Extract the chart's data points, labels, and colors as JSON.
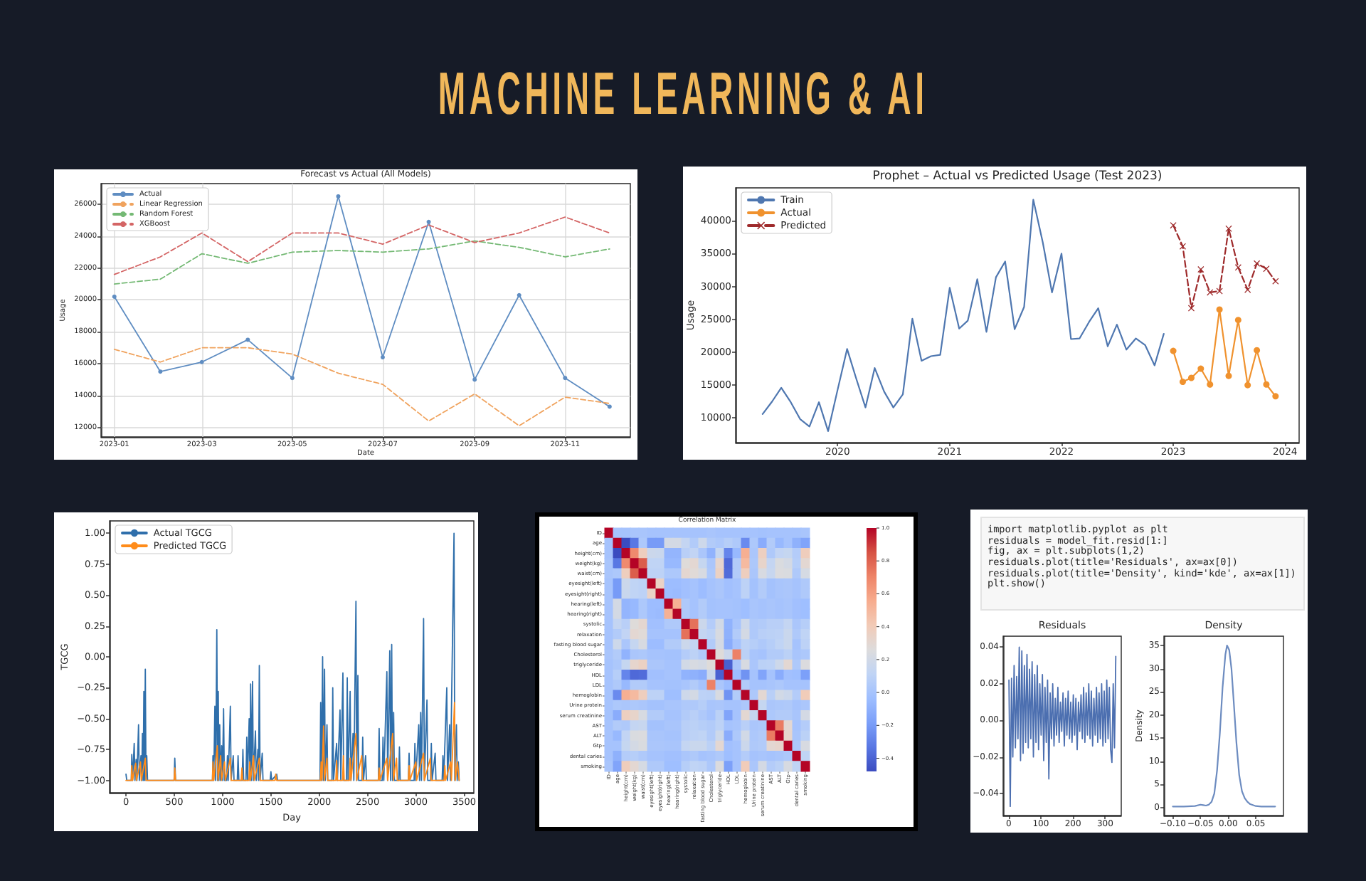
{
  "chart_data": [
    {
      "type": "other",
      "title": "MACHINE LEARNING & AI"
    },
    {
      "type": "line",
      "title": "Forecast vs Actual (All Models)",
      "xlabel": "Date",
      "ylabel": "Usage",
      "x": [
        "2023-01",
        "2023-02",
        "2023-03",
        "2023-04",
        "2023-05",
        "2023-06",
        "2023-07",
        "2023-08",
        "2023-09",
        "2023-10",
        "2023-11",
        "2023-12"
      ],
      "series": [
        {
          "name": "Actual",
          "color": "#5f8dc2",
          "marker": "circle",
          "values": [
            20200,
            15500,
            16100,
            17500,
            15100,
            26500,
            16400,
            24900,
            15000,
            20300,
            15100,
            13300
          ]
        },
        {
          "name": "Linear Regression",
          "color": "#f0a35e",
          "line_style": "dashed",
          "values": [
            16900,
            16100,
            17000,
            17000,
            16600,
            15400,
            14700,
            12400,
            14100,
            12100,
            13900,
            13500
          ]
        },
        {
          "name": "Random Forest",
          "color": "#74b974",
          "line_style": "dashed",
          "values": [
            21000,
            21300,
            22900,
            22300,
            23000,
            23100,
            23000,
            23200,
            23700,
            23300,
            22700,
            23200
          ]
        },
        {
          "name": "XGBoost",
          "color": "#d46565",
          "line_style": "dashed",
          "values": [
            21600,
            22700,
            24200,
            22400,
            24200,
            24200,
            23500,
            24700,
            23600,
            24200,
            25200,
            24200
          ]
        }
      ],
      "xlim": [
        "2022-12-23",
        "2023-12-15"
      ],
      "xticks": [
        "2023-01",
        "2023-03",
        "2023-05",
        "2023-07",
        "2023-09",
        "2023-11"
      ],
      "ylim": [
        11400,
        27300
      ],
      "yticks": [
        12000,
        14000,
        16000,
        18000,
        20000,
        22000,
        24000,
        26000
      ],
      "grid": true,
      "legend": "top left"
    },
    {
      "type": "line",
      "title": "Prophet – Actual vs Predicted Usage (Test 2023)",
      "ylabel": "Usage",
      "series": [
        {
          "name": "Train",
          "color": "#4f77b0",
          "x": [
            "2019-05",
            "2019-06",
            "2019-07",
            "2019-08",
            "2019-09",
            "2019-10",
            "2019-11",
            "2019-12",
            "2020-01",
            "2020-02",
            "2020-03",
            "2020-04",
            "2020-05",
            "2020-06",
            "2020-07",
            "2020-08",
            "2020-09",
            "2020-10",
            "2020-11",
            "2020-12",
            "2021-01",
            "2021-02",
            "2021-03",
            "2021-04",
            "2021-05",
            "2021-06",
            "2021-07",
            "2021-08",
            "2021-09",
            "2021-10",
            "2021-11",
            "2021-12",
            "2022-01",
            "2022-02",
            "2022-03",
            "2022-04",
            "2022-05",
            "2022-06",
            "2022-07",
            "2022-08",
            "2022-09",
            "2022-10",
            "2022-11",
            "2022-12"
          ],
          "values": [
            10600,
            12500,
            14600,
            12400,
            9800,
            8700,
            12400,
            8000,
            14300,
            20500,
            16100,
            11600,
            17600,
            14000,
            11600,
            13600,
            25100,
            18700,
            19400,
            19600,
            29800,
            23600,
            24800,
            31100,
            23100,
            31400,
            33800,
            23500,
            26900,
            43200,
            36700,
            29100,
            35000,
            22000,
            22100,
            24600,
            26700,
            20900,
            24200,
            20400,
            22100,
            21100,
            18000,
            22800
          ]
        },
        {
          "name": "Actual",
          "color": "#f0922e",
          "marker": "circle",
          "x": [
            "2023-01",
            "2023-02",
            "2023-03",
            "2023-04",
            "2023-05",
            "2023-06",
            "2023-07",
            "2023-08",
            "2023-09",
            "2023-10",
            "2023-11",
            "2023-12"
          ],
          "values": [
            20200,
            15500,
            16100,
            17500,
            15100,
            26500,
            16400,
            24900,
            15000,
            20300,
            15100,
            13300
          ]
        },
        {
          "name": "Predicted",
          "color": "#9e2a2b",
          "marker": "cross",
          "line_style": "dashed",
          "x": [
            "2023-01",
            "2023-02",
            "2023-03",
            "2023-04",
            "2023-05",
            "2023-06",
            "2023-07",
            "2023-08",
            "2023-09",
            "2023-10",
            "2023-11",
            "2023-12"
          ],
          "values": [
            39300,
            36100,
            26700,
            32600,
            29100,
            29300,
            38800,
            32900,
            29500,
            33500,
            32700,
            30800
          ]
        }
      ],
      "xlim": [
        "2019-02-02",
        "2024-02-16"
      ],
      "xticks": [
        "2020",
        "2021",
        "2022",
        "2023",
        "2024"
      ],
      "ylim": [
        6250,
        45000
      ],
      "yticks": [
        10000,
        15000,
        20000,
        25000,
        30000,
        35000,
        40000
      ],
      "legend": "top left"
    },
    {
      "type": "line",
      "xlabel": "Day",
      "ylabel": "TGCG",
      "series": [
        {
          "name": "Actual TGCG",
          "color": "#2f6fab",
          "x": [
            0,
            8,
            55,
            60,
            68,
            85,
            93,
            105,
            113,
            130,
            138,
            155,
            163,
            170,
            178,
            185,
            192,
            200,
            207,
            215,
            223,
            498,
            505,
            513,
            895,
            900,
            908,
            920,
            928,
            940,
            948,
            955,
            962,
            970,
            978,
            990,
            998,
            1010,
            1018,
            1042,
            1050,
            1058,
            1080,
            1088,
            1110,
            1118,
            1152,
            1160,
            1168,
            1202,
            1210,
            1218,
            1242,
            1250,
            1258,
            1275,
            1283,
            1290,
            1298,
            1310,
            1318,
            1340,
            1348,
            1365,
            1372,
            1380,
            1388,
            1410,
            1418,
            1492,
            1500,
            1508,
            1560,
            1568,
            2008,
            2015,
            2022,
            2035,
            2042,
            2055,
            2062,
            2080,
            2088,
            2132,
            2140,
            2148,
            2180,
            2188,
            2215,
            2223,
            2245,
            2253,
            2282,
            2290,
            2298,
            2320,
            2328,
            2350,
            2358,
            2380,
            2388,
            2400,
            2408,
            2442,
            2450,
            2458,
            2480,
            2488,
            2612,
            2620,
            2628,
            2652,
            2660,
            2668,
            2700,
            2708,
            2730,
            2738,
            2750,
            2758,
            2770,
            2778,
            2822,
            2830,
            2838,
            2922,
            2930,
            2938,
            2982,
            2990,
            2998,
            3030,
            3038,
            3050,
            3058,
            3080,
            3088,
            3115,
            3123,
            3152,
            3160,
            3168,
            3200,
            3208,
            3272,
            3280,
            3288,
            3320,
            3328,
            3350,
            3358,
            3395,
            3403,
            3420,
            3428,
            3440,
            3448
          ],
          "values": [
            -0.95,
            -1,
            -1,
            -0.79,
            -1,
            -0.7,
            -1,
            -0.83,
            -1,
            -0.55,
            -1,
            -0.8,
            -1,
            -0.62,
            -1,
            -0.28,
            -1,
            -0.1,
            -1,
            -0.8,
            -1,
            -1,
            -0.82,
            -1,
            -1,
            -0.8,
            -1,
            -0.4,
            -1,
            0.22,
            -1,
            -0.28,
            -1,
            -0.55,
            -1,
            -0.72,
            -1,
            -0.42,
            -1,
            -1,
            -0.8,
            -1,
            -0.4,
            -1,
            -0.8,
            -1,
            -1,
            -0.8,
            -1,
            -1,
            -0.75,
            -1,
            -1,
            -0.65,
            -1,
            -0.5,
            -1,
            -0.22,
            -1,
            -0.2,
            -1,
            -0.6,
            -1,
            -0.75,
            -1,
            -0.07,
            -1,
            -0.78,
            -1,
            -1,
            -0.93,
            -1,
            -0.95,
            -1,
            -1,
            -0.37,
            -1,
            0,
            -1,
            -0.1,
            -1,
            -0.55,
            -1,
            -1,
            -0.25,
            -1,
            -0.7,
            -1,
            -0.43,
            -1,
            -0.13,
            -1,
            -1,
            -0.17,
            -1,
            -0.28,
            -1,
            -0.62,
            -1,
            0.45,
            -1,
            -0.15,
            -1,
            -1,
            -0.65,
            -1,
            -0.8,
            -1,
            -1,
            -0.58,
            -1,
            -1,
            -0.65,
            -1,
            -0.12,
            -1,
            0.05,
            -1,
            0.1,
            -1,
            -0.45,
            -1,
            -1,
            -0.73,
            -1,
            -1,
            -0.78,
            -1,
            -1,
            -0.7,
            -1,
            -0.55,
            -1,
            -0.45,
            -1,
            0.31,
            -1,
            -0.35,
            -1,
            -1,
            -0.7,
            -1,
            -0.78,
            -1,
            -1,
            -0.8,
            -1,
            -0.25,
            -1,
            -0.55,
            -1,
            1,
            -1,
            -0.55,
            -1,
            -0.85,
            -1
          ]
        },
        {
          "name": "Predicted TGCG",
          "color": "#ff8c1a",
          "x": [
            0,
            55,
            60,
            68,
            100,
            108,
            150,
            158,
            200,
            208,
            498,
            505,
            513,
            895,
            900,
            908,
            945,
            953,
            980,
            988,
            1020,
            1028,
            1080,
            1088,
            1192,
            1200,
            1208,
            1272,
            1280,
            1288,
            1320,
            1328,
            1380,
            1388,
            1542,
            1550,
            1558,
            2012,
            2020,
            2028,
            2045,
            2053,
            2080,
            2088,
            2172,
            2180,
            2188,
            2242,
            2250,
            2258,
            2312,
            2320,
            2328,
            2380,
            2388,
            2440,
            2448,
            2612,
            2620,
            2628,
            2700,
            2708,
            2760,
            2768,
            2800,
            2808,
            2922,
            2930,
            2938,
            3000,
            3008,
            3080,
            3088,
            3150,
            3158,
            3292,
            3300,
            3308,
            3360,
            3368,
            3400,
            3408,
            3430,
            3448
          ],
          "values": [
            -1,
            -1,
            -0.88,
            -1,
            -0.86,
            -1,
            -0.85,
            -1,
            -0.82,
            -1,
            -1,
            -0.9,
            -1,
            -1,
            -0.85,
            -1,
            -0.72,
            -1,
            -0.8,
            -1,
            -0.85,
            -1,
            -0.82,
            -1,
            -1,
            -0.9,
            -1,
            -1,
            -0.85,
            -1,
            -0.8,
            -1,
            -0.82,
            -1,
            -1,
            -0.95,
            -1,
            -1,
            -0.85,
            -1,
            -0.56,
            -1,
            -0.82,
            -1,
            -1,
            -0.84,
            -1,
            -1,
            -0.8,
            -1,
            -1,
            -0.82,
            -1,
            -0.62,
            -1,
            -0.8,
            -1,
            -1,
            -0.9,
            -1,
            -0.82,
            -1,
            -0.62,
            -1,
            -0.82,
            -1,
            -1,
            -0.88,
            -1,
            -0.85,
            -1,
            -0.78,
            -1,
            -0.82,
            -1,
            -1,
            -0.88,
            -1,
            -0.85,
            -1,
            -0.37,
            -1,
            -0.85,
            -1
          ]
        }
      ],
      "xlim": [
        -170,
        3600
      ],
      "xticks": [
        0,
        500,
        1000,
        1500,
        2000,
        2500,
        3000,
        3500
      ],
      "ylim": [
        -1.1,
        1.1
      ],
      "yticks": [
        {
          "value": -1,
          "label": "−1.00"
        },
        {
          "value": -0.75,
          "label": "−0.75"
        },
        {
          "value": -0.5,
          "label": "−0.50"
        },
        {
          "value": -0.25,
          "label": "−0.25"
        },
        {
          "value": 0,
          "label": "0.00"
        },
        0.25,
        {
          "value": 0.5,
          "label": "0.50"
        },
        0.75,
        {
          "value": 1,
          "label": "1.00"
        }
      ],
      "legend": "top left"
    },
    {
      "type": "heatmap",
      "title": "Correlation Matrix",
      "categories": [
        "ID",
        "age",
        "height(cm)",
        "weight(kg)",
        "waist(cm)",
        "eyesight(left)",
        "eyesight(right)",
        "hearing(left)",
        "hearing(right)",
        "systolic",
        "relaxation",
        "fasting blood sugar",
        "Cholesterol",
        "triglyceride",
        "HDL",
        "LDL",
        "hemoglobin",
        "Urine protein",
        "serum creatinine",
        "AST",
        "ALT",
        "Gtp",
        "dental caries",
        "smoking"
      ],
      "y_categories": [
        "ID",
        "age",
        "height(cm)",
        "weight(kg)",
        "waist(cm)",
        "eyesight(left)",
        "eyesight(right)",
        "hearing(left)",
        "hearing(right)",
        "systolic",
        "relaxation",
        "fasting blood sugar",
        "Cholesterol",
        "triglyceride",
        "HDL",
        "LDL",
        "hemoglobin",
        "Urine protein",
        "serum creatinine",
        "AST",
        "ALT",
        "Gtp",
        "dental caries",
        "smoking"
      ],
      "cells": [
        [
          1.0,
          0.0,
          0.0,
          0.01,
          0.01,
          0.0,
          0.0,
          0.0,
          0.0,
          0.0,
          0.0,
          0.0,
          0.01,
          0.0,
          0.0,
          0.0,
          0.0,
          0.0,
          -0.01,
          0.0,
          0.0,
          0.0,
          0.0,
          0.01
        ],
        [
          0.0,
          1.0,
          -0.48,
          -0.33,
          0.03,
          -0.2,
          -0.2,
          0.21,
          0.21,
          0.13,
          0.05,
          0.18,
          0.05,
          0.03,
          0.07,
          0.04,
          -0.26,
          0.03,
          -0.12,
          0.05,
          -0.06,
          0.0,
          -0.1,
          -0.16
        ],
        [
          0.0,
          -0.48,
          1.0,
          0.68,
          0.38,
          0.17,
          0.16,
          -0.08,
          -0.08,
          0.08,
          0.12,
          0.02,
          -0.09,
          0.14,
          -0.28,
          -0.06,
          0.54,
          0.02,
          0.37,
          0.04,
          0.12,
          0.14,
          0.06,
          0.39
        ],
        [
          0.01,
          -0.33,
          0.68,
          1.0,
          0.82,
          0.11,
          0.11,
          -0.06,
          -0.06,
          0.27,
          0.3,
          0.14,
          0.02,
          0.32,
          -0.38,
          0.05,
          0.49,
          0.03,
          0.33,
          0.13,
          0.24,
          0.21,
          0.07,
          0.3
        ],
        [
          0.01,
          0.03,
          0.38,
          0.82,
          1.0,
          0.1,
          0.1,
          0.03,
          0.03,
          0.31,
          0.28,
          0.23,
          0.03,
          0.36,
          -0.37,
          0.05,
          0.38,
          0.02,
          0.23,
          0.15,
          0.25,
          0.24,
          0.04,
          0.22
        ],
        [
          0.0,
          -0.2,
          0.17,
          0.11,
          0.1,
          1.0,
          0.35,
          -0.04,
          -0.04,
          -0.02,
          0.0,
          -0.04,
          0.0,
          0.02,
          -0.02,
          0.0,
          0.1,
          -0.01,
          0.05,
          -0.01,
          0.01,
          0.02,
          0.0,
          0.04
        ],
        [
          0.0,
          -0.2,
          0.16,
          0.11,
          0.1,
          0.35,
          1.0,
          -0.04,
          -0.05,
          -0.02,
          0.0,
          -0.04,
          0.0,
          0.02,
          -0.02,
          0.0,
          0.1,
          -0.01,
          0.05,
          -0.01,
          0.01,
          0.02,
          0.0,
          0.04
        ],
        [
          0.0,
          0.21,
          -0.08,
          -0.06,
          0.03,
          -0.04,
          -0.04,
          1.0,
          0.53,
          0.04,
          0.0,
          0.05,
          -0.01,
          0.0,
          0.0,
          -0.01,
          -0.03,
          0.01,
          0.0,
          0.01,
          0.0,
          0.01,
          -0.02,
          -0.03
        ],
        [
          0.0,
          0.21,
          -0.08,
          -0.06,
          0.03,
          -0.04,
          -0.05,
          0.53,
          1.0,
          0.04,
          0.0,
          0.05,
          -0.01,
          0.0,
          0.0,
          -0.01,
          -0.03,
          0.01,
          0.0,
          0.01,
          0.0,
          0.01,
          -0.02,
          -0.03
        ],
        [
          0.0,
          0.13,
          0.08,
          0.27,
          0.31,
          -0.02,
          -0.02,
          0.04,
          0.04,
          1.0,
          0.76,
          0.17,
          0.06,
          0.2,
          -0.09,
          0.01,
          0.18,
          0.04,
          0.05,
          0.08,
          0.08,
          0.13,
          0.02,
          0.07
        ],
        [
          0.0,
          0.05,
          0.12,
          0.3,
          0.28,
          0.0,
          0.0,
          0.0,
          0.0,
          0.76,
          1.0,
          0.13,
          0.1,
          0.23,
          -0.1,
          0.05,
          0.21,
          0.04,
          0.08,
          0.09,
          0.1,
          0.16,
          0.04,
          0.11
        ],
        [
          0.0,
          0.18,
          0.02,
          0.14,
          0.23,
          -0.04,
          -0.04,
          0.05,
          0.05,
          0.17,
          0.13,
          1.0,
          0.05,
          0.21,
          -0.12,
          0.0,
          0.1,
          0.07,
          0.04,
          0.07,
          0.11,
          0.16,
          0.0,
          0.1
        ],
        [
          0.01,
          0.05,
          -0.09,
          0.02,
          0.03,
          0.0,
          0.0,
          -0.01,
          -0.01,
          0.06,
          0.1,
          0.05,
          1.0,
          0.27,
          0.17,
          0.71,
          0.09,
          0.01,
          0.0,
          0.05,
          0.05,
          0.09,
          0.01,
          0.03
        ],
        [
          0.0,
          0.03,
          0.14,
          0.32,
          0.36,
          0.02,
          0.02,
          0.0,
          0.0,
          0.2,
          0.23,
          0.21,
          0.27,
          1.0,
          -0.41,
          0.02,
          0.23,
          0.02,
          0.09,
          0.1,
          0.18,
          0.3,
          0.04,
          0.25
        ],
        [
          0.0,
          0.07,
          -0.28,
          -0.38,
          -0.37,
          -0.02,
          -0.02,
          0.0,
          0.0,
          -0.09,
          -0.1,
          -0.12,
          0.17,
          -0.41,
          1.0,
          -0.04,
          -0.23,
          0.0,
          -0.16,
          0.0,
          -0.12,
          -0.02,
          -0.03,
          -0.18
        ],
        [
          0.0,
          0.04,
          -0.06,
          0.05,
          0.05,
          0.0,
          0.0,
          -0.01,
          -0.01,
          0.01,
          0.05,
          0.0,
          0.71,
          0.02,
          -0.04,
          1.0,
          0.05,
          0.0,
          0.0,
          0.01,
          0.03,
          0.0,
          0.0,
          0.0
        ],
        [
          0.0,
          -0.26,
          0.54,
          0.49,
          0.38,
          0.1,
          0.1,
          -0.03,
          -0.03,
          0.18,
          0.21,
          0.1,
          0.09,
          0.23,
          -0.23,
          0.05,
          1.0,
          0.03,
          0.3,
          0.08,
          0.2,
          0.17,
          0.06,
          0.4
        ],
        [
          0.0,
          0.03,
          0.02,
          0.03,
          0.02,
          -0.01,
          -0.01,
          0.01,
          0.01,
          0.04,
          0.04,
          0.07,
          0.01,
          0.02,
          0.0,
          0.0,
          0.03,
          1.0,
          0.14,
          0.02,
          0.03,
          0.04,
          0.0,
          0.02
        ],
        [
          -0.01,
          -0.12,
          0.37,
          0.33,
          0.23,
          0.05,
          0.05,
          0.0,
          0.0,
          0.05,
          0.08,
          0.04,
          0.0,
          0.09,
          -0.16,
          0.0,
          0.3,
          0.14,
          1.0,
          0.03,
          0.05,
          0.05,
          0.01,
          0.21
        ],
        [
          0.0,
          0.05,
          0.04,
          0.13,
          0.15,
          -0.01,
          -0.01,
          0.01,
          0.01,
          0.08,
          0.09,
          0.07,
          0.05,
          0.1,
          0.0,
          0.01,
          0.08,
          0.02,
          0.03,
          1.0,
          0.73,
          0.3,
          0.0,
          0.06
        ],
        [
          0.0,
          -0.06,
          0.12,
          0.24,
          0.25,
          0.01,
          0.01,
          0.0,
          0.0,
          0.08,
          0.1,
          0.11,
          0.05,
          0.18,
          -0.12,
          0.03,
          0.2,
          0.03,
          0.05,
          0.73,
          1.0,
          0.32,
          0.01,
          0.09
        ],
        [
          0.0,
          0.0,
          0.14,
          0.21,
          0.24,
          0.02,
          0.02,
          0.01,
          0.01,
          0.13,
          0.16,
          0.16,
          0.09,
          0.3,
          -0.02,
          0.0,
          0.17,
          0.04,
          0.05,
          0.3,
          0.32,
          1.0,
          0.03,
          0.23
        ],
        [
          0.0,
          -0.1,
          0.06,
          0.07,
          0.04,
          0.0,
          0.0,
          -0.02,
          -0.02,
          0.02,
          0.04,
          0.0,
          0.01,
          0.04,
          -0.03,
          0.0,
          0.06,
          0.0,
          0.01,
          0.0,
          0.01,
          0.03,
          1.0,
          0.11
        ],
        [
          0.01,
          -0.16,
          0.39,
          0.3,
          0.22,
          0.04,
          0.04,
          -0.03,
          -0.03,
          0.07,
          0.11,
          0.1,
          0.03,
          0.25,
          -0.18,
          0.0,
          0.4,
          0.02,
          0.21,
          0.06,
          0.09,
          0.23,
          0.11,
          1.0
        ]
      ],
      "clim": [
        -0.48,
        1
      ],
      "cticks": [
        {
          "value": -0.4,
          "label": "−0.4"
        },
        {
          "value": -0.2,
          "label": "−0.2"
        },
        {
          "value": 0,
          "label": "0.0"
        },
        0.2,
        0.4,
        0.6,
        0.8,
        {
          "value": 1,
          "label": "1.0"
        }
      ]
    },
    {
      "type": "other",
      "annotations": [
        "import matplotlib.pyplot as plt",
        "residuals = model_fit.resid[1:]",
        "fig, ax = plt.subplots(1,2)",
        "residuals.plot(title='Residuals', ax=ax[0])",
        "residuals.plot(title='Density', kind='kde', ax=ax[1])",
        "plt.show()"
      ]
    },
    {
      "type": "line",
      "title": "Residuals",
      "color": "#4c6fb0",
      "x": [
        1,
        5,
        9,
        13,
        17,
        21,
        25,
        29,
        33,
        37,
        41,
        45,
        49,
        53,
        57,
        61,
        65,
        69,
        73,
        77,
        81,
        85,
        89,
        93,
        97,
        101,
        105,
        109,
        113,
        117,
        121,
        125,
        129,
        133,
        137,
        141,
        145,
        149,
        153,
        157,
        161,
        165,
        169,
        173,
        177,
        181,
        185,
        189,
        193,
        197,
        201,
        205,
        209,
        213,
        217,
        221,
        225,
        229,
        233,
        237,
        241,
        245,
        249,
        253,
        257,
        261,
        265,
        269,
        273,
        277,
        281,
        285,
        289,
        293,
        297,
        301,
        305,
        309,
        313,
        317,
        321,
        325,
        329,
        333
      ],
      "values": [
        0.022,
        -0.047,
        0.023,
        -0.02,
        0.03,
        -0.015,
        0.024,
        -0.01,
        0.04,
        -0.022,
        0.038,
        -0.018,
        0.03,
        -0.012,
        0.036,
        -0.015,
        0.028,
        -0.01,
        0.032,
        -0.02,
        0.025,
        -0.012,
        0.03,
        -0.016,
        0.02,
        -0.008,
        0.025,
        -0.022,
        0.018,
        -0.012,
        0.022,
        -0.032,
        0.015,
        -0.01,
        0.02,
        -0.014,
        0.012,
        -0.008,
        0.018,
        -0.012,
        0.01,
        -0.006,
        0.015,
        -0.014,
        0.012,
        -0.008,
        0.016,
        -0.01,
        0.01,
        -0.012,
        0.014,
        -0.008,
        0.012,
        -0.016,
        0.01,
        -0.006,
        0.014,
        -0.01,
        0.018,
        -0.012,
        0.015,
        -0.008,
        0.02,
        -0.01,
        0.016,
        -0.014,
        0.012,
        -0.008,
        0.018,
        -0.012,
        0.015,
        -0.01,
        0.02,
        -0.014,
        0.016,
        -0.012,
        0.022,
        -0.01,
        0.018,
        -0.016,
        -0.023,
        0.02,
        -0.015,
        0.035
      ],
      "xlim": [
        -17,
        350
      ],
      "xticks": [
        0,
        100,
        200,
        300
      ],
      "ylim": [
        -0.052,
        0.046
      ],
      "yticks": [
        {
          "value": -0.04,
          "label": "−0.04"
        },
        {
          "value": -0.02,
          "label": "−0.02"
        },
        {
          "value": 0,
          "label": "0.00"
        },
        0.02,
        0.04
      ]
    },
    {
      "type": "line",
      "title": "Density",
      "ylabel": "Density",
      "color": "#6d8cc0",
      "x": [
        -0.1,
        -0.08,
        -0.06,
        -0.05,
        -0.045,
        -0.04,
        -0.035,
        -0.03,
        -0.025,
        -0.02,
        -0.015,
        -0.01,
        -0.005,
        -0.002,
        0.002,
        0.006,
        0.01,
        0.015,
        0.02,
        0.025,
        0.03,
        0.035,
        0.04,
        0.05,
        0.06,
        0.085
      ],
      "values": [
        0.2,
        0.2,
        0.3,
        0.6,
        0.5,
        0.4,
        0.6,
        1.2,
        3,
        8,
        16,
        26,
        33,
        35,
        34,
        30,
        23,
        14,
        7,
        3.5,
        2,
        1.2,
        0.7,
        0.3,
        0.2,
        0.2
      ],
      "xlim": [
        -0.116,
        0.1
      ],
      "xticks": [
        {
          "value": -0.1,
          "label": "−0.10"
        },
        {
          "value": -0.05,
          "label": "−0.05"
        },
        {
          "value": 0,
          "label": "0.00"
        },
        0.05
      ],
      "ylim": [
        -1.75,
        37
      ],
      "yticks": [
        0,
        5,
        10,
        15,
        20,
        25,
        30,
        35
      ]
    }
  ]
}
